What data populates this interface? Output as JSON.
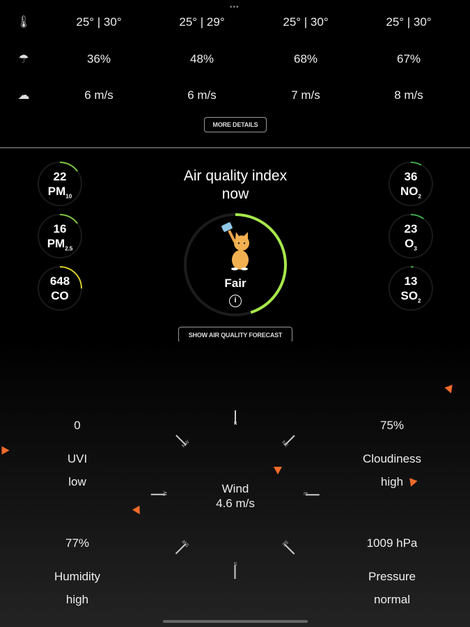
{
  "forecast": {
    "rows": [
      {
        "icon": "thermometer-icon",
        "values": [
          "25° | 30°",
          "25° | 29°",
          "25° | 30°",
          "25° | 30°"
        ]
      },
      {
        "icon": "umbrella-icon",
        "values": [
          "36%",
          "48%",
          "68%",
          "67%"
        ]
      },
      {
        "icon": "wind-cloud-icon",
        "values": [
          "6 m/s",
          "6 m/s",
          "7 m/s",
          "8 m/s"
        ]
      }
    ],
    "more_details": "MORE DETAILS"
  },
  "aqi": {
    "title_line1": "Air quality index",
    "title_line2": "now",
    "status": "Fair",
    "level": 0.45,
    "color": "#a6e84a",
    "forecast_button": "SHOW AIR QUALITY FORECAST",
    "pollutants_left": [
      {
        "value": "22",
        "name": "PM",
        "sub": "10",
        "level": 0.15,
        "color": "#7cc63f"
      },
      {
        "value": "16",
        "name": "PM",
        "sub": "2.5",
        "level": 0.15,
        "color": "#7cc63f"
      },
      {
        "value": "648",
        "name": "CO",
        "sub": "",
        "level": 0.25,
        "color": "#d6cc2c"
      }
    ],
    "pollutants_right": [
      {
        "value": "36",
        "name": "NO",
        "sub": "2",
        "level": 0.08,
        "color": "#3fa84a"
      },
      {
        "value": "23",
        "name": "O",
        "sub": "3",
        "level": 0.1,
        "color": "#3fa84a"
      },
      {
        "value": "13",
        "name": "SO",
        "sub": "2",
        "level": 0.02,
        "color": "#3fa84a"
      }
    ]
  },
  "gauges": {
    "uvi": {
      "value": "0",
      "label": "UVI",
      "level": "low"
    },
    "cloudiness": {
      "value": "75%",
      "label": "Cloudiness",
      "level": "high"
    },
    "humidity": {
      "value": "77%",
      "label": "Humidity",
      "level": "high"
    },
    "pressure": {
      "value": "1009 hPa",
      "label": "Pressure",
      "level": "normal"
    },
    "wind": {
      "label": "Wind",
      "value": "4.6 m/s"
    },
    "compass": [
      "N",
      "NE",
      "E",
      "SE",
      "S",
      "SW",
      "W",
      "NW"
    ],
    "accent": "#f26b2a"
  }
}
